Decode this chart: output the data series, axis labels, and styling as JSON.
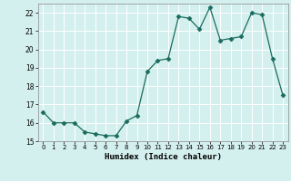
{
  "x": [
    0,
    1,
    2,
    3,
    4,
    5,
    6,
    7,
    8,
    9,
    10,
    11,
    12,
    13,
    14,
    15,
    16,
    17,
    18,
    19,
    20,
    21,
    22,
    23
  ],
  "y": [
    16.6,
    16.0,
    16.0,
    16.0,
    15.5,
    15.4,
    15.3,
    15.3,
    16.1,
    16.4,
    18.8,
    19.4,
    19.5,
    21.8,
    21.7,
    21.1,
    22.3,
    20.5,
    20.6,
    20.7,
    22.0,
    21.9,
    19.5,
    17.5
  ],
  "line_color": "#1a6b5e",
  "marker": "D",
  "marker_size": 2.5,
  "bg_color": "#d4f0ee",
  "grid_color": "#ffffff",
  "xlabel": "Humidex (Indice chaleur)",
  "xlim": [
    -0.5,
    23.5
  ],
  "ylim": [
    15,
    22.5
  ],
  "yticks": [
    15,
    16,
    17,
    18,
    19,
    20,
    21,
    22
  ],
  "xticks": [
    0,
    1,
    2,
    3,
    4,
    5,
    6,
    7,
    8,
    9,
    10,
    11,
    12,
    13,
    14,
    15,
    16,
    17,
    18,
    19,
    20,
    21,
    22,
    23
  ]
}
